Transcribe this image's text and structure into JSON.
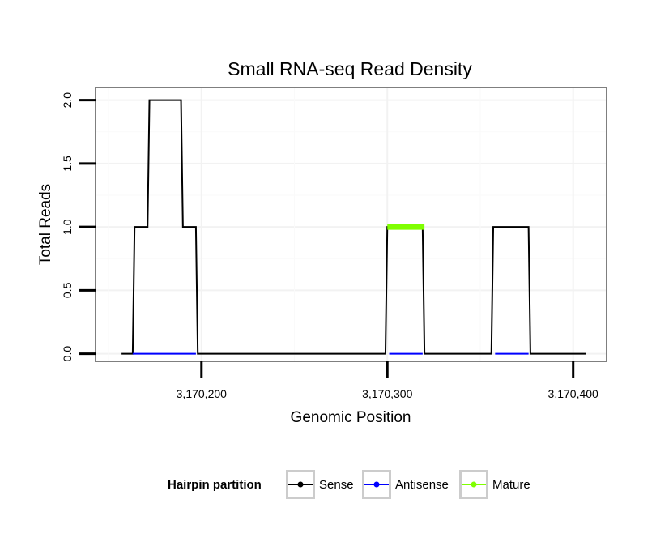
{
  "chart_data": {
    "type": "line",
    "title": "Small RNA-seq Read Density",
    "xlabel": "Genomic Position",
    "ylabel": "Total Reads",
    "xlim": [
      3170143,
      3170418
    ],
    "ylim": [
      -0.06,
      2.1
    ],
    "x_ticks": [
      {
        "value": 3170200,
        "label": "3,170,200"
      },
      {
        "value": 3170300,
        "label": "3,170,300"
      },
      {
        "value": 3170400,
        "label": "3,170,400"
      }
    ],
    "y_ticks": [
      {
        "value": 0.0,
        "label": "0.0"
      },
      {
        "value": 0.5,
        "label": "0.5"
      },
      {
        "value": 1.0,
        "label": "1.0"
      },
      {
        "value": 1.5,
        "label": "1.5"
      },
      {
        "value": 2.0,
        "label": "2.0"
      }
    ],
    "grid": true,
    "legend": {
      "title": "Hairpin partition",
      "placement": "bottom",
      "entries": [
        {
          "label": "Sense",
          "color": "#000000"
        },
        {
          "label": "Antisense",
          "color": "#0000ff"
        },
        {
          "label": "Mature",
          "color": "#7fff00"
        }
      ]
    },
    "series": [
      {
        "name": "Sense",
        "color": "#000000",
        "x": [
          3170157,
          3170163,
          3170164,
          3170171,
          3170172,
          3170173,
          3170175,
          3170189,
          3170190,
          3170191,
          3170197,
          3170198,
          3170199,
          3170232,
          3170233,
          3170299,
          3170300,
          3170301,
          3170319,
          3170320,
          3170321,
          3170356,
          3170357,
          3170358,
          3170376,
          3170377,
          3170378,
          3170407
        ],
        "y": [
          0,
          0,
          1,
          1,
          2,
          2,
          2,
          2,
          1,
          1,
          1,
          0,
          0,
          0,
          0,
          0,
          1,
          1,
          1,
          0,
          0,
          0,
          1,
          1,
          1,
          0,
          0,
          0
        ]
      },
      {
        "name": "Antisense",
        "color": "#0000ff",
        "segments": [
          [
            3170163,
            3170197
          ],
          [
            3170301,
            3170319
          ],
          [
            3170358,
            3170376
          ]
        ],
        "value": 0
      },
      {
        "name": "Mature",
        "color": "#7fff00",
        "segments": [
          [
            3170300,
            3170320
          ]
        ],
        "value": 1
      }
    ]
  }
}
